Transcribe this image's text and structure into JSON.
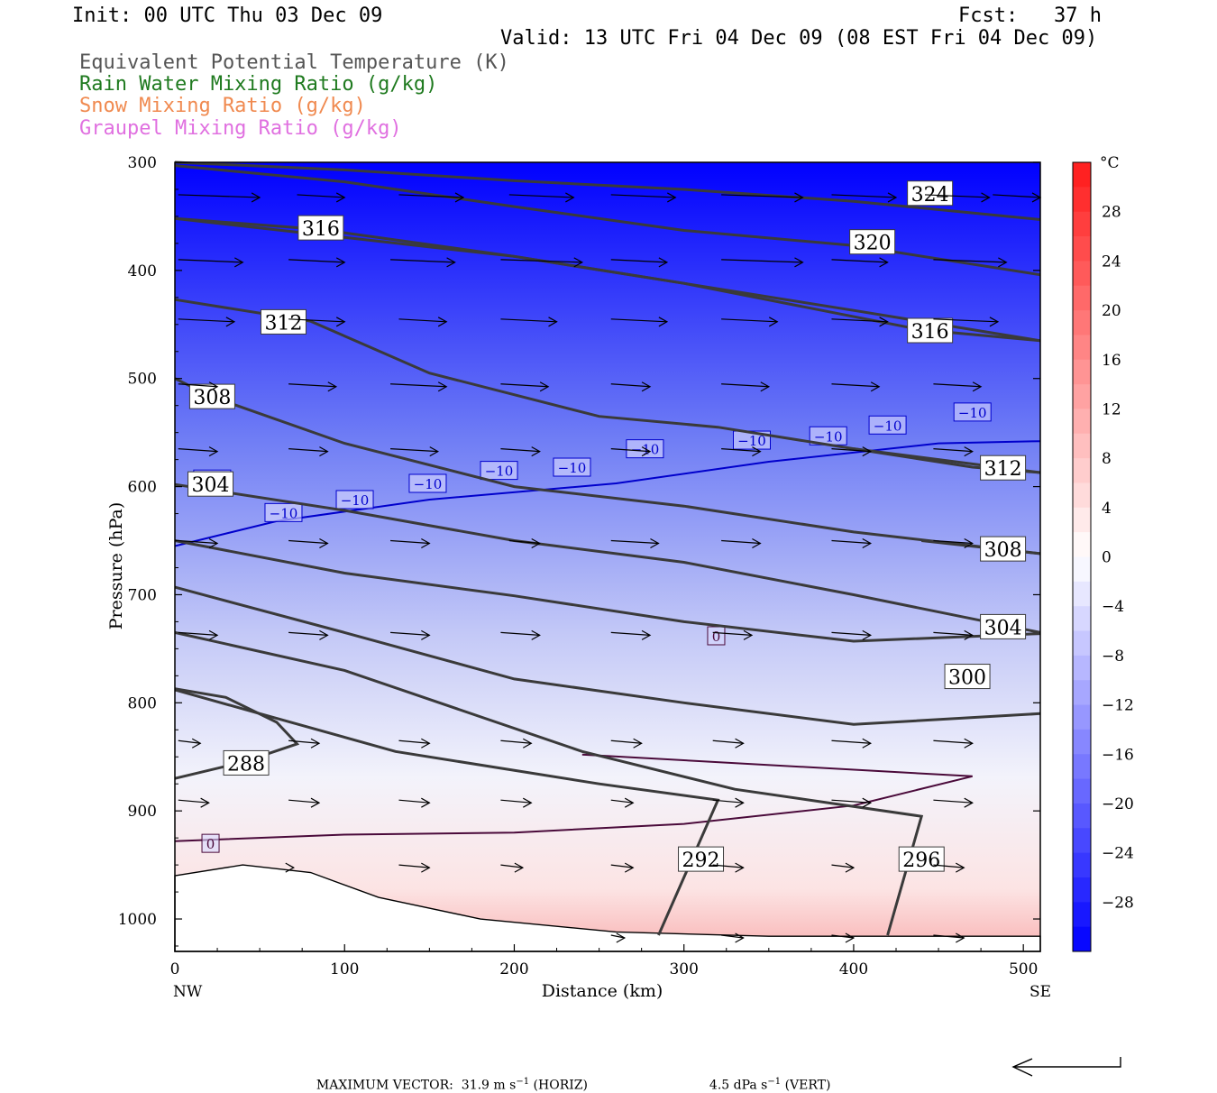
{
  "header": {
    "init": "Init: 00 UTC Thu 03 Dec 09",
    "fcst": "Fcst:   37 h",
    "valid": "Valid: 13 UTC Fri 04 Dec 09 (08 EST Fri 04 Dec 09)",
    "legend": [
      {
        "text": "Equivalent Potential Temperature (K)",
        "color": "#555555"
      },
      {
        "text": "Rain Water Mixing Ratio (g/kg)",
        "color": "#1f7a1f"
      },
      {
        "text": "Snow Mixing Ratio (g/kg)",
        "color": "#f08a50"
      },
      {
        "text": "Graupel Mixing Ratio (g/kg)",
        "color": "#e070e0"
      }
    ]
  },
  "chart_data": {
    "type": "contour-cross-section",
    "xlabel": "Distance (km)",
    "ylabel": "Pressure (hPa)",
    "xlim": [
      0,
      510
    ],
    "ylim": [
      1030,
      300
    ],
    "x_ticks": [
      0,
      100,
      200,
      300,
      400,
      500
    ],
    "y_ticks": [
      300,
      400,
      500,
      600,
      700,
      800,
      900,
      1000
    ],
    "x_end_labels": {
      "left": "NW",
      "right": "SE"
    },
    "colorbar": {
      "unit": "°C",
      "ticks": [
        28,
        24,
        20,
        16,
        12,
        8,
        4,
        0,
        -4,
        -8,
        -12,
        -16,
        -20,
        -24,
        -28
      ],
      "tick_labels": [
        "28",
        "24",
        "20",
        "16",
        "12",
        "8",
        "4",
        "0",
        "−4",
        "−8",
        "−12",
        "−16",
        "−20",
        "−24",
        "−28"
      ],
      "range": [
        -32,
        32
      ],
      "cold_color": "#0000ff",
      "warm_color": "#ff1a1a"
    },
    "theta_e_contours": [
      {
        "label": "324",
        "points": [
          [
            0,
            300
          ],
          [
            100,
            307
          ],
          [
            200,
            317
          ],
          [
            300,
            325
          ],
          [
            400,
            336
          ],
          [
            510,
            353
          ]
        ],
        "label_at": [
          445,
          329
        ]
      },
      {
        "label": "320",
        "points": [
          [
            0,
            303
          ],
          [
            100,
            318
          ],
          [
            200,
            341
          ],
          [
            300,
            363
          ],
          [
            400,
            377
          ],
          [
            510,
            404
          ]
        ],
        "label_at": [
          411,
          374
        ]
      },
      {
        "label": "316",
        "points": [
          [
            0,
            352
          ],
          [
            85,
            362
          ],
          [
            200,
            387
          ],
          [
            300,
            412
          ],
          [
            400,
            437
          ],
          [
            510,
            465
          ]
        ],
        "label_at": [
          86,
          361
        ]
      },
      {
        "label": "316",
        "points": [
          [
            0,
            352
          ],
          [
            200,
            387
          ],
          [
            300,
            412
          ],
          [
            440,
            455
          ],
          [
            510,
            465
          ]
        ],
        "label_at": [
          445,
          456
        ]
      },
      {
        "label": "312",
        "points": [
          [
            0,
            427
          ],
          [
            80,
            447
          ],
          [
            150,
            495
          ],
          [
            250,
            535
          ],
          [
            320,
            545
          ],
          [
            400,
            565
          ],
          [
            510,
            587
          ]
        ],
        "label_at": [
          64,
          448
        ]
      },
      {
        "label": "312",
        "points": [
          [
            400,
            565
          ],
          [
            470,
            582
          ],
          [
            510,
            587
          ]
        ],
        "label_at": [
          488,
          583
        ]
      },
      {
        "label": "308",
        "points": [
          [
            0,
            500
          ],
          [
            22,
            517
          ],
          [
            100,
            560
          ],
          [
            200,
            600
          ],
          [
            300,
            618
          ],
          [
            400,
            642
          ],
          [
            510,
            662
          ]
        ],
        "label_at": [
          22,
          517
        ]
      },
      {
        "label": "308",
        "points": [
          [
            440,
            650
          ],
          [
            510,
            662
          ]
        ],
        "label_at": [
          488,
          658
        ]
      },
      {
        "label": "304",
        "points": [
          [
            0,
            650
          ],
          [
            100,
            680
          ],
          [
            200,
            701
          ],
          [
            300,
            725
          ],
          [
            400,
            743
          ],
          [
            510,
            736
          ]
        ],
        "label_at": [
          488,
          730
        ]
      },
      {
        "label": "304",
        "points": [
          [
            0,
            598
          ],
          [
            100,
            622
          ],
          [
            200,
            650
          ],
          [
            300,
            670
          ],
          [
            400,
            700
          ],
          [
            510,
            735
          ]
        ],
        "label_at": [
          21,
          598
        ]
      },
      {
        "label": "300",
        "points": [
          [
            0,
            693
          ],
          [
            100,
            735
          ],
          [
            200,
            778
          ],
          [
            300,
            800
          ],
          [
            400,
            820
          ],
          [
            510,
            810
          ]
        ],
        "label_at": [
          467,
          776
        ]
      },
      {
        "label": "296",
        "points": [
          [
            0,
            735
          ],
          [
            100,
            770
          ],
          [
            240,
            845
          ],
          [
            330,
            880
          ],
          [
            440,
            905
          ],
          [
            420,
            1015
          ]
        ],
        "label_at": [
          440,
          945
        ]
      },
      {
        "label": "292",
        "points": [
          [
            0,
            788
          ],
          [
            50,
            810
          ],
          [
            130,
            845
          ],
          [
            250,
            875
          ],
          [
            320,
            890
          ],
          [
            285,
            1015
          ]
        ],
        "label_at": [
          310,
          945
        ]
      },
      {
        "label": "288",
        "points": [
          [
            0,
            787
          ],
          [
            30,
            795
          ],
          [
            60,
            818
          ],
          [
            72,
            838
          ],
          [
            40,
            855
          ],
          [
            0,
            870
          ]
        ],
        "label_at": [
          42,
          856
        ]
      }
    ],
    "temperature_contours": [
      {
        "label": "−10",
        "color": "#0000cc",
        "points": [
          [
            0,
            655
          ],
          [
            60,
            632
          ],
          [
            150,
            612
          ],
          [
            260,
            597
          ],
          [
            350,
            577
          ],
          [
            450,
            560
          ],
          [
            510,
            558
          ]
        ],
        "labels_at": [
          [
            22,
            593
          ],
          [
            64,
            624
          ],
          [
            106,
            612
          ],
          [
            149,
            597
          ],
          [
            191,
            585
          ],
          [
            234,
            582
          ],
          [
            277,
            565
          ],
          [
            340,
            557
          ],
          [
            385,
            553
          ],
          [
            420,
            543
          ],
          [
            470,
            531
          ]
        ]
      },
      {
        "label": "0",
        "color": "#4a0a3a",
        "points": [
          [
            0,
            928
          ],
          [
            100,
            922
          ],
          [
            200,
            920
          ],
          [
            300,
            912
          ],
          [
            400,
            895
          ],
          [
            470,
            868
          ],
          [
            240,
            848
          ]
        ],
        "labels_at": [
          [
            21,
            930
          ],
          [
            319,
            738
          ]
        ]
      }
    ],
    "max_vector": {
      "label": "MAXIMUM VECTOR:",
      "horiz": "31.9 m s",
      "horiz_unit": "(HORIZ)",
      "vert": "4.5 dPa s",
      "vert_unit": "(VERT)",
      "exponent": "−1"
    }
  }
}
